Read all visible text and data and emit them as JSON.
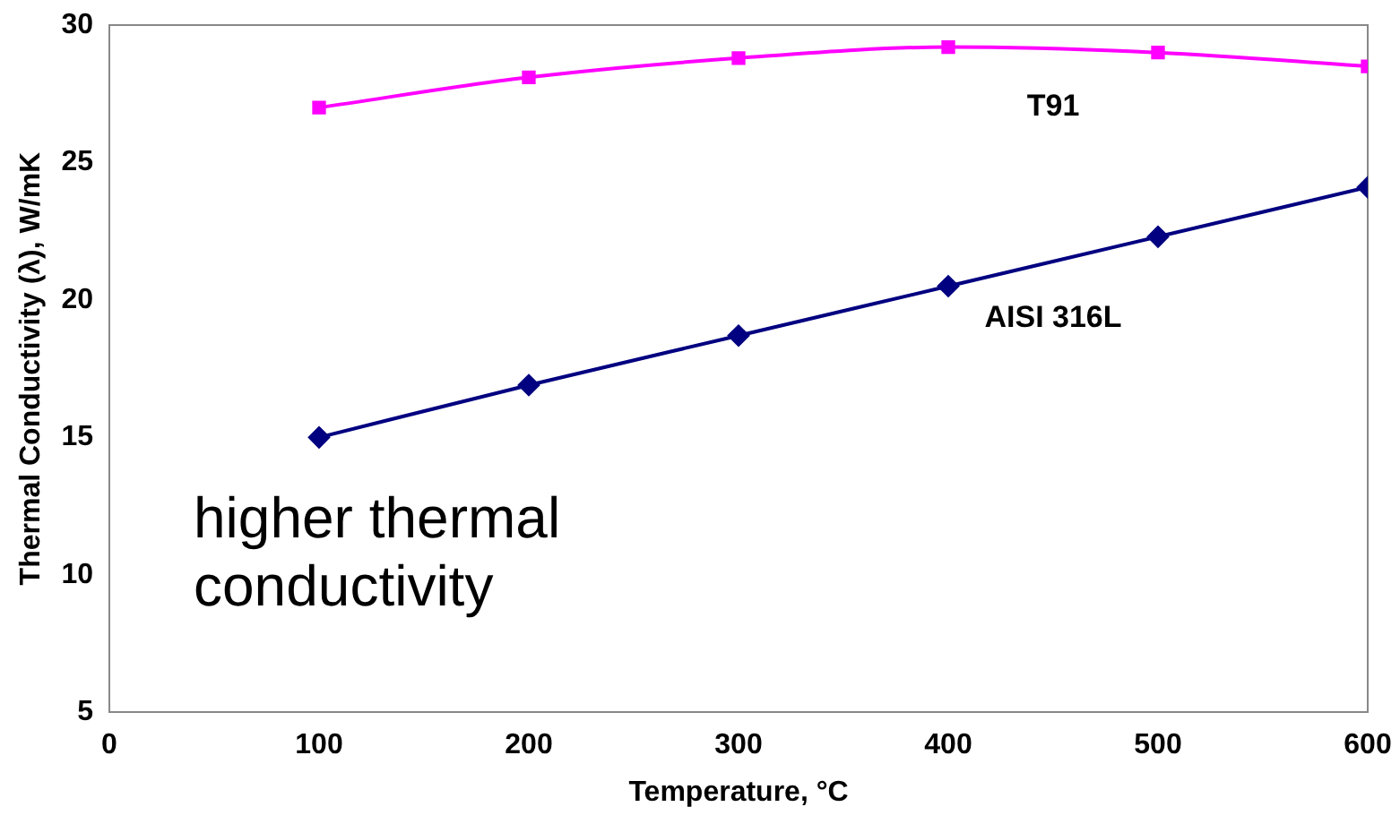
{
  "chart_data": {
    "type": "line",
    "xlabel": "Temperature, °C",
    "ylabel": "Thermal Conductivity (λ), W/mK",
    "x": [
      100,
      200,
      300,
      400,
      500,
      600
    ],
    "series": [
      {
        "name": "T91",
        "color": "#ff00ff",
        "marker": "square",
        "values": [
          27.0,
          28.1,
          28.8,
          29.2,
          29.0,
          28.5
        ]
      },
      {
        "name": "AISI 316L",
        "color": "#000080",
        "marker": "diamond",
        "values": [
          15.0,
          16.9,
          18.7,
          20.5,
          22.3,
          24.1
        ]
      }
    ],
    "xlim": [
      0,
      600
    ],
    "xticks": [
      0,
      100,
      200,
      300,
      400,
      500,
      600
    ],
    "ylim": [
      5,
      30
    ],
    "yticks": [
      5,
      10,
      15,
      20,
      25,
      30
    ],
    "grid": false,
    "legend": false,
    "annotations": [
      "higher thermal conductivity"
    ]
  }
}
